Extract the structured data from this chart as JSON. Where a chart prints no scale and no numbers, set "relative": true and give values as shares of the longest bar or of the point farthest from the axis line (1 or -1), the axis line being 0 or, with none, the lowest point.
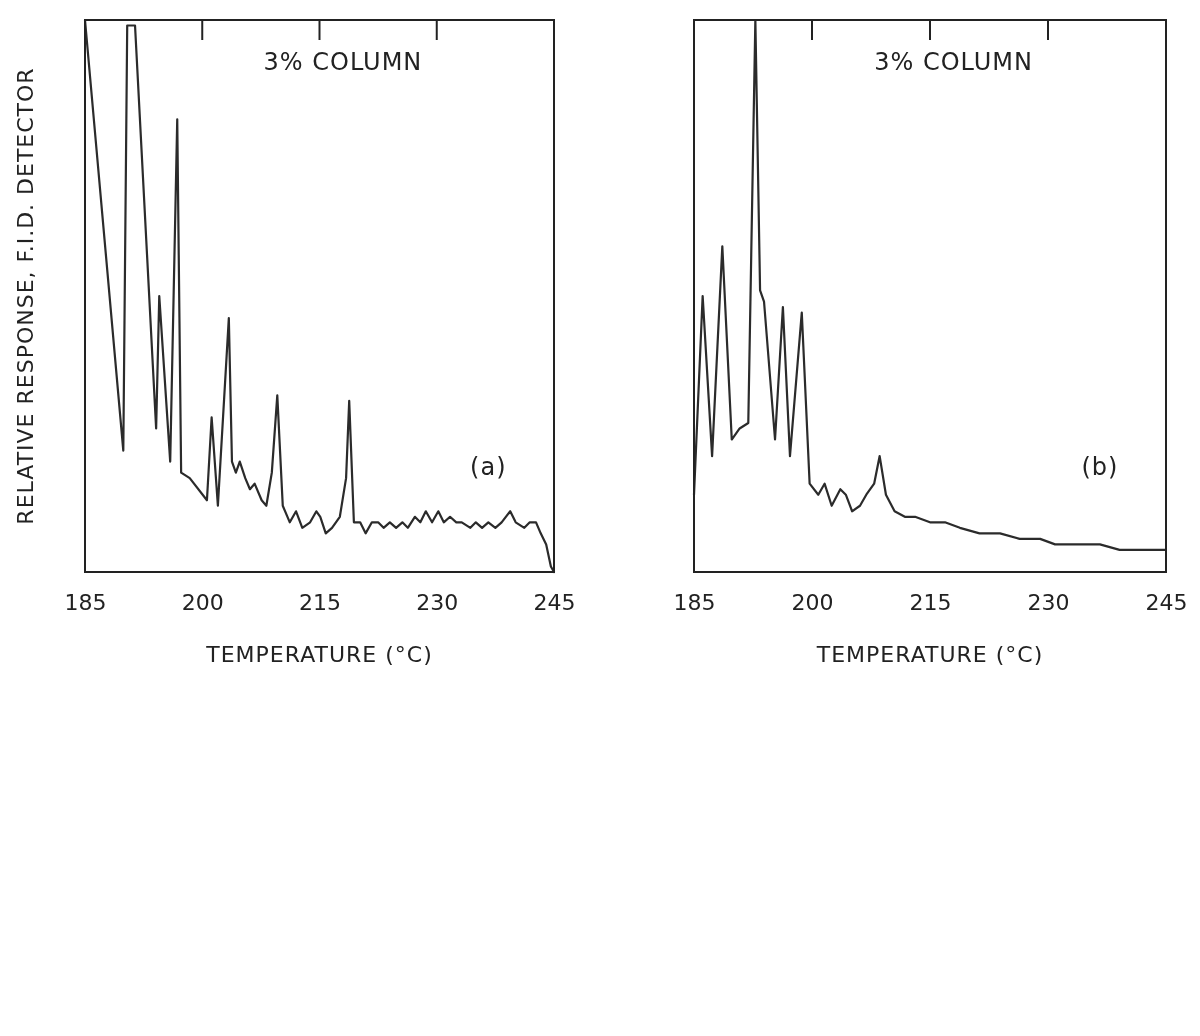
{
  "chart_data": [
    {
      "type": "line",
      "relative": true,
      "xlabel": "TEMPERATURE (°C)",
      "ylabel": "RELATIVE RESPONSE, F.I.D. DETECTOR",
      "xlim": [
        185,
        245
      ],
      "xticks": [
        185,
        200,
        215,
        230,
        245
      ],
      "annotations": [
        "3% COLUMN",
        "(a)"
      ],
      "series": [
        {
          "color": "#2b2b2b",
          "x": [
            185.0,
            189.9,
            190.4,
            191.4,
            194.1,
            194.5,
            195.9,
            196.8,
            197.3,
            198.4,
            200.6,
            201.2,
            202.0,
            203.4,
            203.8,
            204.3,
            204.8,
            205.5,
            206.1,
            206.7,
            207.6,
            208.2,
            208.9,
            209.6,
            210.3,
            211.2,
            212.0,
            212.8,
            213.8,
            214.6,
            215.1,
            215.8,
            216.6,
            217.6,
            218.4,
            218.8,
            219.4,
            220.2,
            220.9,
            221.7,
            222.5,
            223.2,
            224.0,
            224.8,
            225.6,
            226.3,
            227.2,
            227.9,
            228.6,
            229.4,
            230.2,
            230.9,
            231.7,
            232.5,
            233.2,
            234.3,
            235.0,
            235.8,
            236.6,
            237.5,
            238.3,
            239.4,
            240.1,
            241.2,
            241.9,
            242.7,
            243.3,
            244.0,
            244.6,
            245.0
          ],
          "values": [
            1.0,
            0.22,
            0.99,
            0.99,
            0.26,
            0.5,
            0.2,
            0.82,
            0.18,
            0.17,
            0.13,
            0.28,
            0.12,
            0.46,
            0.2,
            0.18,
            0.2,
            0.17,
            0.15,
            0.16,
            0.13,
            0.12,
            0.18,
            0.32,
            0.12,
            0.09,
            0.11,
            0.08,
            0.09,
            0.11,
            0.1,
            0.07,
            0.08,
            0.1,
            0.17,
            0.31,
            0.09,
            0.09,
            0.07,
            0.09,
            0.09,
            0.08,
            0.09,
            0.08,
            0.09,
            0.08,
            0.1,
            0.09,
            0.11,
            0.09,
            0.11,
            0.09,
            0.1,
            0.09,
            0.09,
            0.08,
            0.09,
            0.08,
            0.09,
            0.08,
            0.09,
            0.11,
            0.09,
            0.08,
            0.09,
            0.09,
            0.07,
            0.05,
            0.01,
            0.0
          ]
        }
      ]
    },
    {
      "type": "line",
      "relative": true,
      "xlabel": "TEMPERATURE (°C)",
      "xlim": [
        185,
        245
      ],
      "xticks": [
        185,
        200,
        215,
        230,
        245
      ],
      "annotations": [
        "3% COLUMN",
        "(b)"
      ],
      "series": [
        {
          "color": "#2b2b2b",
          "x": [
            185.0,
            186.1,
            187.3,
            188.6,
            189.8,
            190.8,
            191.9,
            192.8,
            193.4,
            193.9,
            195.3,
            196.3,
            197.2,
            198.7,
            199.7,
            200.8,
            201.6,
            202.5,
            203.6,
            204.3,
            205.1,
            206.1,
            206.9,
            207.9,
            208.6,
            209.4,
            210.5,
            211.8,
            213.1,
            215.0,
            216.9,
            218.8,
            221.3,
            223.9,
            226.4,
            229.0,
            230.9,
            234.0,
            236.6,
            239.1,
            241.7,
            245.0
          ],
          "values": [
            0.14,
            0.5,
            0.21,
            0.59,
            0.24,
            0.26,
            0.27,
            1.0,
            0.51,
            0.49,
            0.24,
            0.48,
            0.21,
            0.47,
            0.16,
            0.14,
            0.16,
            0.12,
            0.15,
            0.14,
            0.11,
            0.12,
            0.14,
            0.16,
            0.21,
            0.14,
            0.11,
            0.1,
            0.1,
            0.09,
            0.09,
            0.08,
            0.07,
            0.07,
            0.06,
            0.06,
            0.05,
            0.05,
            0.05,
            0.04,
            0.04,
            0.04
          ]
        }
      ]
    }
  ]
}
